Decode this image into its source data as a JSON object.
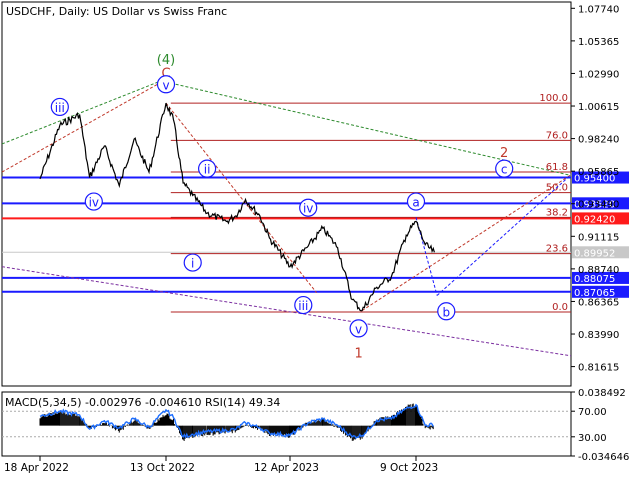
{
  "header": {
    "symbol": "USDCHF",
    "timeframe": "Daily",
    "description": "US Dollar vs Swiss Franc"
  },
  "chart_data": {
    "type": "line",
    "price_axis": {
      "ticks": [
        1.0774,
        1.05365,
        1.0299,
        1.00615,
        0.9824,
        0.95865,
        0.9349,
        0.91115,
        0.8874,
        0.86365,
        0.8399,
        0.81615
      ],
      "tick_labels": [
        "1.07740",
        "1.05365",
        "1.02990",
        "1.00615",
        "0.98240",
        "0.95865",
        "0.93490",
        "0.91115",
        "0.88740",
        "0.86365",
        "0.83990",
        "0.81615"
      ],
      "range": [
        0.802,
        1.082
      ]
    },
    "time_axis": {
      "labels": [
        "18 Apr 2022",
        "13 Oct 2022",
        "12 Apr 2023",
        "9 Oct 2023"
      ]
    },
    "price_series": {
      "name": "USDCHF",
      "x": [
        "2022-04-18",
        "2022-05-16",
        "2022-06-13",
        "2022-06-27",
        "2022-07-18",
        "2022-08-08",
        "2022-08-29",
        "2022-09-19",
        "2022-10-13",
        "2022-10-24",
        "2022-11-07",
        "2022-11-21",
        "2022-12-12",
        "2023-01-09",
        "2023-01-23",
        "2023-02-06",
        "2023-02-27",
        "2023-03-13",
        "2023-04-12",
        "2023-05-08",
        "2023-05-29",
        "2023-06-19",
        "2023-07-10",
        "2023-07-24",
        "2023-08-14",
        "2023-09-04",
        "2023-09-25",
        "2023-10-09",
        "2023-10-23",
        "2023-11-06"
      ],
      "y": [
        0.953,
        0.992,
        1.0,
        0.954,
        0.977,
        0.948,
        0.982,
        0.958,
        1.0083,
        0.996,
        0.95,
        0.941,
        0.928,
        0.922,
        0.926,
        0.938,
        0.926,
        0.91,
        0.889,
        0.904,
        0.917,
        0.903,
        0.865,
        0.857,
        0.874,
        0.882,
        0.912,
        0.922,
        0.905,
        0.8995
      ]
    },
    "horizontal_levels": [
      {
        "value": 0.954,
        "label": "0.95400",
        "color": "#1a1aff"
      },
      {
        "value": 0.9352,
        "label": "0.93520",
        "color": "#1a1aff"
      },
      {
        "value": 0.9242,
        "label": "0.92420",
        "color": "#ff1a1a"
      },
      {
        "value": 0.8808,
        "label": "0.88075",
        "color": "#1a1aff"
      },
      {
        "value": 0.8707,
        "label": "0.87065",
        "color": "#1a1aff"
      }
    ],
    "current_price": {
      "value": 0.8995,
      "label": "0.89952"
    },
    "fibonacci": {
      "color": "#b02020",
      "levels": [
        {
          "label": "100.0",
          "value": 1.0083
        },
        {
          "label": "76.0",
          "value": 0.9811
        },
        {
          "label": "61.8",
          "value": 0.958
        },
        {
          "label": "50.0",
          "value": 0.943
        },
        {
          "label": "38.2",
          "value": 0.925
        },
        {
          "label": "23.6",
          "value": 0.8985
        },
        {
          "label": "0.0",
          "value": 0.856
        }
      ]
    },
    "wave_labels": [
      {
        "text": "(4)",
        "color": "#2e8b2e"
      },
      {
        "text": "C",
        "color": "#c0392b"
      },
      {
        "text": "v",
        "color": "#1a1aff"
      },
      {
        "text": "iii",
        "color": "#1a1aff"
      },
      {
        "text": "iv",
        "color": "#1a1aff"
      },
      {
        "text": "ii",
        "color": "#1a1aff"
      },
      {
        "text": "i",
        "color": "#1a1aff"
      },
      {
        "text": "iv",
        "color": "#1a1aff"
      },
      {
        "text": "iii",
        "color": "#1a1aff"
      },
      {
        "text": "v",
        "color": "#1a1aff"
      },
      {
        "text": "1",
        "color": "#c0392b"
      },
      {
        "text": "a",
        "color": "#1a1aff"
      },
      {
        "text": "b",
        "color": "#1a1aff"
      },
      {
        "text": "c",
        "color": "#1a1aff"
      },
      {
        "text": "2",
        "color": "#c0392b"
      }
    ],
    "indicator": {
      "label": "MACD(5,34,5) -0.002976 -0.004610 RSI(14) 49.34",
      "axis_labels": [
        "0.038492",
        "70.00",
        "30.00",
        "-0.034646"
      ],
      "macd": [
        0.01,
        0.016,
        0.012,
        -0.004,
        0.004,
        -0.006,
        0.006,
        -0.003,
        0.014,
        0.006,
        -0.016,
        -0.012,
        -0.01,
        -0.008,
        -0.006,
        0.002,
        -0.004,
        -0.01,
        -0.012,
        0.004,
        0.008,
        -0.002,
        -0.016,
        -0.014,
        0.008,
        0.01,
        0.022,
        0.024,
        -0.002,
        -0.003
      ],
      "rsi": [
        62,
        70,
        64,
        42,
        55,
        44,
        58,
        45,
        72,
        60,
        30,
        34,
        38,
        40,
        42,
        52,
        44,
        36,
        32,
        52,
        58,
        48,
        30,
        32,
        56,
        58,
        74,
        80,
        48,
        49
      ]
    }
  }
}
